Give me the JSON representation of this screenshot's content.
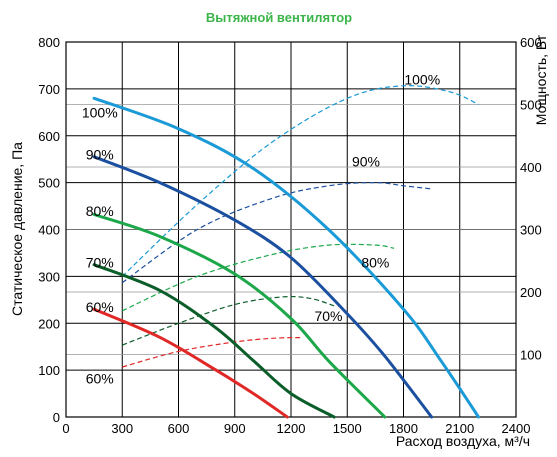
{
  "chart_data": {
    "type": "line",
    "title": "Вытяжной вентилятор",
    "title_color": "#3bb54a",
    "xlabel": "Расход воздуха, м³/ч",
    "ylabel_left": "Статическое давление, Па",
    "ylabel_right": "Мощность, Вт",
    "xlim": [
      0,
      2400
    ],
    "ylim_left": [
      0,
      800
    ],
    "ylim_right": [
      0,
      600
    ],
    "x_ticks": [
      0,
      300,
      600,
      900,
      1200,
      1500,
      1800,
      2100,
      2400
    ],
    "y_left_ticks": [
      0,
      100,
      200,
      300,
      400,
      500,
      600,
      700,
      800
    ],
    "y_right_ticks": [
      100,
      200,
      300,
      400,
      500,
      600
    ],
    "grid": true,
    "pressure_series": [
      {
        "name": "100%",
        "color": "#1a9ad6",
        "label_at": [
          180,
          650
        ],
        "points": [
          [
            150,
            680
          ],
          [
            600,
            615
          ],
          [
            1000,
            530
          ],
          [
            1400,
            400
          ],
          [
            1800,
            230
          ],
          [
            2000,
            120
          ],
          [
            2200,
            0
          ]
        ]
      },
      {
        "name": "90%",
        "color": "#1b4fa0",
        "label_at": [
          180,
          560
        ],
        "points": [
          [
            150,
            555
          ],
          [
            500,
            500
          ],
          [
            900,
            420
          ],
          [
            1200,
            340
          ],
          [
            1500,
            220
          ],
          [
            1700,
            130
          ],
          [
            1950,
            0
          ]
        ]
      },
      {
        "name": "80%",
        "color": "#1ca84a",
        "label_at": [
          180,
          440
        ],
        "points": [
          [
            150,
            432
          ],
          [
            500,
            385
          ],
          [
            900,
            305
          ],
          [
            1200,
            210
          ],
          [
            1400,
            120
          ],
          [
            1700,
            0
          ]
        ]
      },
      {
        "name": "70%",
        "color": "#0b5e2a",
        "label_at": [
          180,
          330
        ],
        "points": [
          [
            150,
            325
          ],
          [
            500,
            270
          ],
          [
            800,
            190
          ],
          [
            1000,
            120
          ],
          [
            1200,
            50
          ],
          [
            1430,
            0
          ]
        ]
      },
      {
        "name": "60%",
        "color": "#e02826",
        "label_at": [
          180,
          235
        ],
        "points": [
          [
            150,
            230
          ],
          [
            500,
            170
          ],
          [
            800,
            100
          ],
          [
            1000,
            50
          ],
          [
            1180,
            0
          ]
        ]
      }
    ],
    "power_series": [
      {
        "name": "100%",
        "color": "#1a9ad6",
        "label_at": [
          1900,
          720
        ],
        "points_watts": [
          [
            300,
            225
          ],
          [
            700,
            340
          ],
          [
            1100,
            440
          ],
          [
            1500,
            510
          ],
          [
            1800,
            530
          ],
          [
            2050,
            520
          ],
          [
            2200,
            500
          ]
        ]
      },
      {
        "name": "90%",
        "color": "#1b4fa0",
        "label_at": [
          1600,
          545
        ],
        "points_watts": [
          [
            300,
            215
          ],
          [
            700,
            300
          ],
          [
            1100,
            350
          ],
          [
            1400,
            370
          ],
          [
            1650,
            375
          ],
          [
            1800,
            370
          ],
          [
            1950,
            365
          ]
        ]
      },
      {
        "name": "80%",
        "color": "#1ca84a",
        "label_at": [
          1650,
          330
        ],
        "points_watts": [
          [
            300,
            170
          ],
          [
            700,
            225
          ],
          [
            1100,
            260
          ],
          [
            1400,
            275
          ],
          [
            1650,
            275
          ],
          [
            1750,
            270
          ]
        ]
      },
      {
        "name": "70%",
        "color": "#0b5e2a",
        "label_at": [
          1400,
          215
        ],
        "points_watts": [
          [
            300,
            115
          ],
          [
            600,
            150
          ],
          [
            900,
            180
          ],
          [
            1150,
            192
          ],
          [
            1300,
            190
          ],
          [
            1430,
            178
          ]
        ]
      },
      {
        "name": "60%",
        "color": "#e02826",
        "label_at": [
          180,
          82
        ],
        "points_watts": [
          [
            300,
            80
          ],
          [
            600,
            105
          ],
          [
            900,
            120
          ],
          [
            1100,
            126
          ],
          [
            1250,
            127
          ]
        ]
      }
    ]
  }
}
